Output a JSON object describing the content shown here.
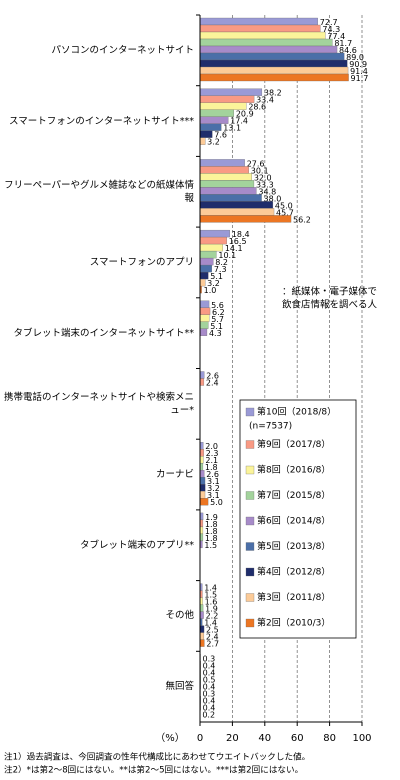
{
  "chart_data": {
    "type": "bar",
    "orientation": "horizontal",
    "categories": [
      "パソコンのインターネットサイト",
      "スマートフォンのインターネットサイト***",
      "フリーペーパーやグルメ雑誌などの紙媒体情報",
      "スマートフォンのアプリ",
      "タブレット端末のインターネットサイト**",
      "携帯電話のインターネットサイトや検索メニュー*",
      "カーナビ",
      "タブレット端末のアプリ**",
      "その他",
      "無回答"
    ],
    "series": [
      {
        "name": "第10回（2018/8）",
        "color": "#9a9ad6",
        "values": [
          72.7,
          38.2,
          27.6,
          18.4,
          5.6,
          2.6,
          2.0,
          1.9,
          1.4,
          0.3
        ],
        "value_labels": [
          "72.7",
          "38.2",
          "27.6",
          "18.4",
          "5.6",
          "2.6",
          "2.0",
          "1.9",
          "1.4",
          "0.3"
        ]
      },
      {
        "name": "第9回（2017/8）",
        "color": "#f99a84",
        "values": [
          74.3,
          33.4,
          30.1,
          16.5,
          6.2,
          2.4,
          2.3,
          1.8,
          1.5,
          0.4
        ],
        "value_labels": [
          "74.3",
          "33.4",
          "30.1",
          "16.5",
          "6.2",
          "2.4",
          "2.3",
          "1.8",
          "1.5",
          "0.4"
        ]
      },
      {
        "name": "第8回（2016/8）",
        "color": "#fbf49a",
        "values": [
          77.4,
          28.6,
          32.0,
          14.1,
          5.7,
          null,
          2.1,
          1.8,
          1.6,
          0.4
        ],
        "value_labels": [
          "77.4",
          "28.6",
          "32.0",
          "14.1",
          "5.7",
          null,
          "2.1",
          "1.8",
          "1.6",
          "0.4"
        ]
      },
      {
        "name": "第7回（2015/8）",
        "color": "#a3d39c",
        "values": [
          81.7,
          20.9,
          33.3,
          10.1,
          5.1,
          null,
          1.8,
          1.8,
          1.9,
          0.5
        ],
        "value_labels": [
          "81.7",
          "20.9",
          "33.3",
          "10.1",
          "5.1",
          null,
          "1.8",
          "1.8",
          "1.9",
          "0.5"
        ]
      },
      {
        "name": "第6回（2014/8）",
        "color": "#a78bc9",
        "values": [
          84.6,
          17.4,
          34.8,
          8.2,
          4.3,
          null,
          2.6,
          1.5,
          2.2,
          0.4
        ],
        "value_labels": [
          "84.6",
          "17.4",
          "34.8",
          "8.2",
          "4.3",
          null,
          "2.6",
          "1.5",
          "2.2",
          "0.4"
        ]
      },
      {
        "name": "第5回（2013/8）",
        "color": "#4b6fa8",
        "values": [
          89.0,
          13.1,
          38.0,
          7.3,
          null,
          null,
          3.1,
          null,
          1.4,
          0.3
        ],
        "value_labels": [
          "89.0",
          "13.1",
          "38.0",
          "7.3",
          null,
          null,
          "3.1",
          null,
          "1.4",
          "0.3"
        ]
      },
      {
        "name": "第4回（2012/8）",
        "color": "#1f2d6b",
        "values": [
          90.9,
          7.6,
          45.0,
          5.1,
          null,
          null,
          3.2,
          null,
          2.5,
          0.4
        ],
        "value_labels": [
          "90.9",
          "7.6",
          "45.0",
          "5.1",
          null,
          null,
          "3.2",
          null,
          "2.5",
          "0.4"
        ]
      },
      {
        "name": "第3回（2011/8）",
        "color": "#fccb98",
        "values": [
          91.4,
          3.2,
          45.7,
          3.2,
          null,
          null,
          3.1,
          null,
          2.4,
          0.4
        ],
        "value_labels": [
          "91.4",
          "3.2",
          "45.7",
          "3.2",
          null,
          null,
          "3.1",
          null,
          "2.4",
          "0.4"
        ]
      },
      {
        "name": "第2回（2010/3）",
        "color": "#ec7623",
        "values": [
          91.7,
          null,
          56.2,
          1.0,
          null,
          null,
          5.0,
          null,
          2.7,
          0.2
        ],
        "value_labels": [
          "91.7",
          null,
          "56.2",
          "1.0",
          null,
          null,
          "5.0",
          null,
          "2.7",
          "0.2"
        ]
      }
    ],
    "legend_note": "(n=7537)",
    "xlim": [
      0,
      100
    ],
    "xticks": [
      0,
      20,
      40,
      60,
      80,
      100
    ],
    "xlabel": "（%）",
    "grid": true,
    "annotation": [
      "：紙媒体・電子媒体で",
      "飲食店情報を調べる人"
    ],
    "notes": [
      "注1）過去調査は、今回調査の性年代構成比にあわせてウエイトバックした値。",
      "注2）*は第2～8回にはない。**は第2～5回にはない。***は第2回にはない。"
    ]
  }
}
